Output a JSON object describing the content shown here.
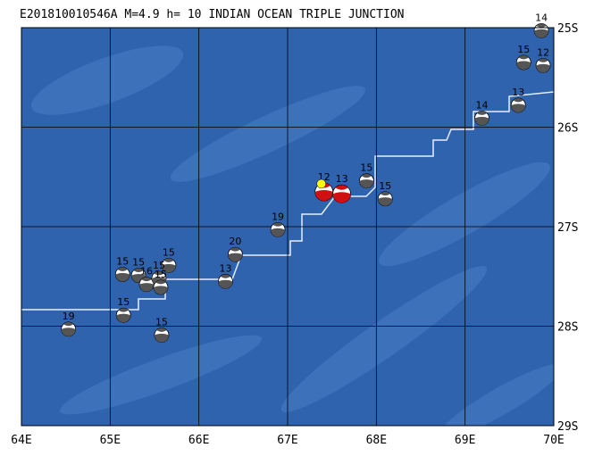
{
  "title": "E201810010546A M=4.9 h= 10 INDIAN OCEAN TRIPLE JUNCTION",
  "xlim": [
    64,
    70
  ],
  "ylim": [
    -29,
    -25
  ],
  "xticks": [
    {
      "value": 64,
      "label": "64E"
    },
    {
      "value": 65,
      "label": "65E"
    },
    {
      "value": 66,
      "label": "66E"
    },
    {
      "value": 67,
      "label": "67E"
    },
    {
      "value": 68,
      "label": "68E"
    },
    {
      "value": 69,
      "label": "69E"
    },
    {
      "value": 70,
      "label": "70E"
    }
  ],
  "yticks": [
    {
      "value": -25,
      "label": "25S"
    },
    {
      "value": -26,
      "label": "26S"
    },
    {
      "value": -27,
      "label": "27S"
    },
    {
      "value": -28,
      "label": "28S"
    },
    {
      "value": -29,
      "label": "29S"
    }
  ],
  "events": [
    {
      "lon": 64.53,
      "lat": -28.03,
      "depth": 19,
      "color": "#000000"
    },
    {
      "lon": 65.15,
      "lat": -27.89,
      "depth": 15,
      "color": "#000000"
    },
    {
      "lon": 65.14,
      "lat": -27.48,
      "depth": 15,
      "color": "#000000"
    },
    {
      "lon": 65.32,
      "lat": -27.49,
      "depth": 15,
      "color": "#000000"
    },
    {
      "lon": 65.41,
      "lat": -27.58,
      "depth": 16,
      "color": "#000000"
    },
    {
      "lon": 65.55,
      "lat": -27.52,
      "depth": 15,
      "color": "#000000"
    },
    {
      "lon": 65.66,
      "lat": -27.39,
      "depth": 15,
      "color": "#000000"
    },
    {
      "lon": 65.57,
      "lat": -27.61,
      "depth": 15,
      "color": "#000000"
    },
    {
      "lon": 65.58,
      "lat": -28.09,
      "depth": 15,
      "color": "#000000"
    },
    {
      "lon": 66.3,
      "lat": -27.55,
      "depth": 13,
      "color": "#000000"
    },
    {
      "lon": 66.41,
      "lat": -27.28,
      "depth": 20,
      "color": "#000000"
    },
    {
      "lon": 66.89,
      "lat": -27.03,
      "depth": 19,
      "color": "#000000"
    },
    {
      "lon": 67.41,
      "lat": -26.65,
      "depth": 12,
      "color": "#d01010"
    },
    {
      "lon": 67.61,
      "lat": -26.67,
      "depth": 13,
      "color": "#d01010"
    },
    {
      "lon": 67.89,
      "lat": -26.54,
      "depth": 15,
      "color": "#000000"
    },
    {
      "lon": 68.1,
      "lat": -26.72,
      "depth": 15,
      "color": "#000000"
    },
    {
      "lon": 69.19,
      "lat": -25.91,
      "depth": 14,
      "color": "#000000"
    },
    {
      "lon": 69.6,
      "lat": -25.78,
      "depth": 13,
      "color": "#000000"
    },
    {
      "lon": 69.66,
      "lat": -25.35,
      "depth": 15,
      "color": "#000000"
    },
    {
      "lon": 69.86,
      "lat": -25.03,
      "depth": 14,
      "color": "#000000"
    },
    {
      "lon": 69.88,
      "lat": -25.38,
      "depth": 12,
      "color": "#000000"
    }
  ]
}
